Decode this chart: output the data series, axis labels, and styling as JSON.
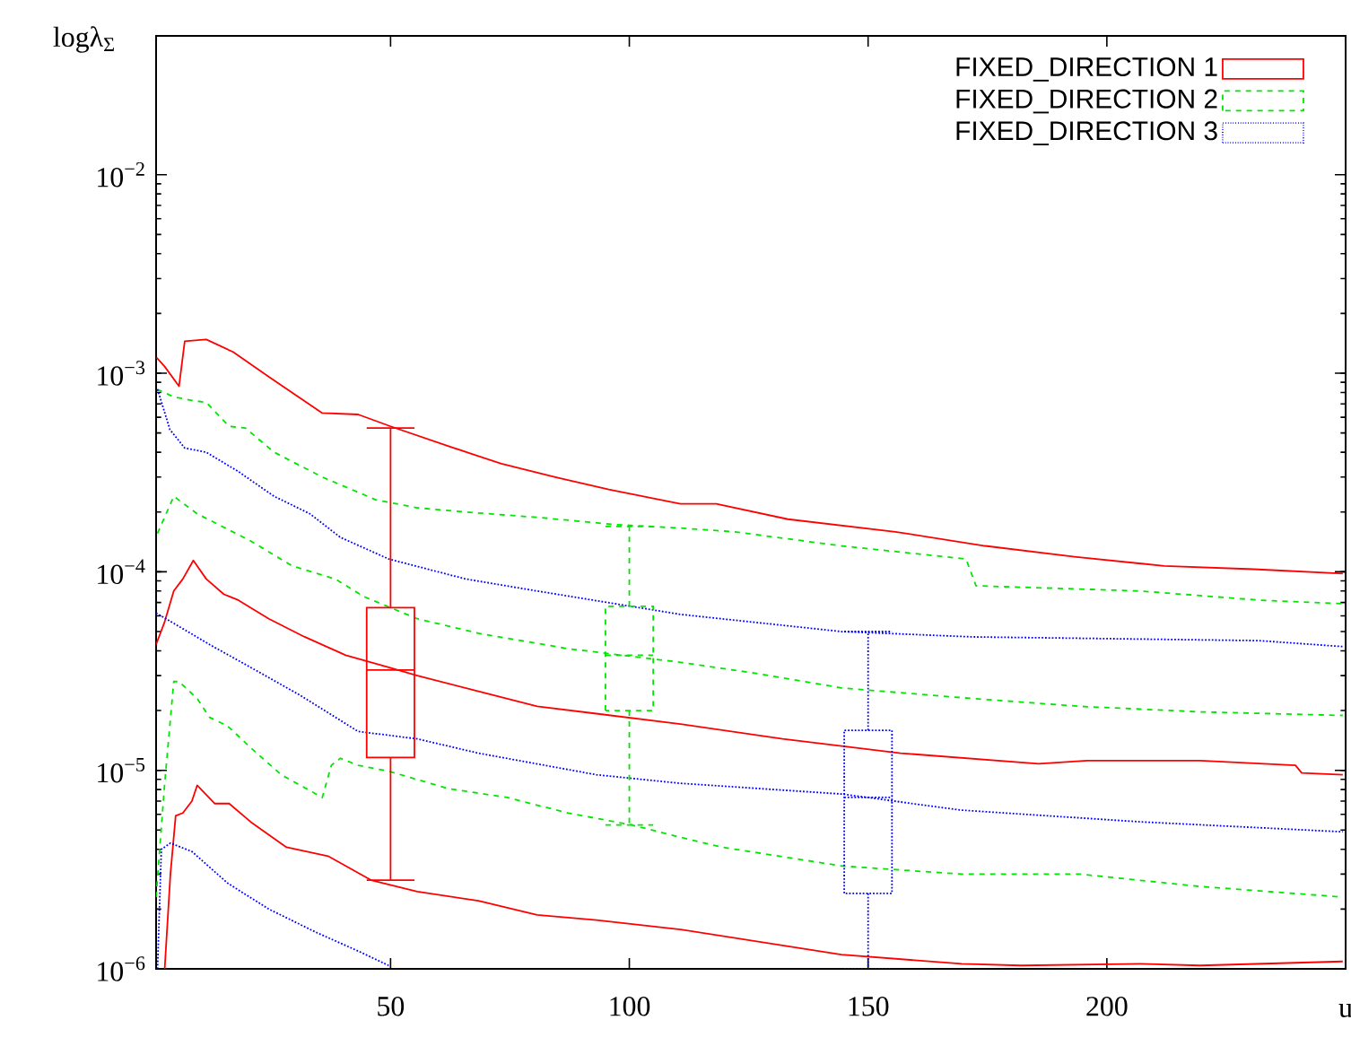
{
  "chart_data": {
    "type": "line",
    "xlabel": "u",
    "ylabel": "logλ$_{Σ}$",
    "log": "y",
    "legend": "top right",
    "xlim": [
      0.9,
      250
    ],
    "xticks": [
      50,
      100,
      150,
      200
    ],
    "ylim": [
      1e-06,
      0.05
    ],
    "yticks": [
      {
        "value": 1e-06,
        "label": "10$^{−6}$"
      },
      {
        "value": 1e-05,
        "label": "10$^{−5}$"
      },
      {
        "value": 0.0001,
        "label": "10$^{−4}$"
      },
      {
        "value": 0.001,
        "label": "10$^{−3}$"
      },
      {
        "value": 0.01,
        "label": "10$^{−2}$"
      }
    ],
    "series": [
      {
        "color": "#ff0000",
        "line_style": "solid",
        "x": [
          1,
          2.7,
          5.7,
          6.9,
          11.4,
          17,
          24.5,
          35.7,
          43.2,
          50,
          62,
          73.2,
          84.5,
          95.7,
          110.7,
          118.2,
          133.2,
          155.7,
          174.5,
          193.2,
          212,
          230.7,
          249.4
        ],
        "values": [
          0.0012,
          0.00108,
          0.00086,
          0.00145,
          0.00148,
          0.00128,
          0.00096,
          0.00063,
          0.00062,
          0.00054,
          0.00043,
          0.00035,
          0.0003,
          0.00026,
          0.00022,
          0.00022,
          0.000184,
          0.000159,
          0.000135,
          0.000119,
          0.000107,
          0.000103,
          9.8e-05
        ]
      },
      {
        "color": "#00e600",
        "line_style": "dashed",
        "x": [
          1.1,
          4.6,
          8.4,
          11.4,
          16.2,
          19.6,
          25.6,
          35.7,
          47,
          55.6,
          65.7,
          80.7,
          96.9,
          110.7,
          122,
          144.4,
          170.5,
          172.6,
          207,
          231.8,
          249.4
        ],
        "values": [
          0.00083,
          0.00076,
          0.00073,
          0.000713,
          0.00054,
          0.00053,
          0.0004,
          0.0003,
          0.00023,
          0.00021,
          0.0002,
          0.000188,
          0.000173,
          0.000166,
          0.000159,
          0.000135,
          0.000116,
          8.5e-05,
          8e-05,
          7.2e-05,
          6.9e-05
        ]
      },
      {
        "color": "#0000ff",
        "line_style": "dotted",
        "x": [
          1.2,
          3.8,
          6.9,
          11.4,
          18.1,
          25.6,
          33.1,
          39.5,
          49.6,
          65.7,
          80.7,
          110.7,
          144.4,
          171.8,
          231.8,
          249.4
        ],
        "values": [
          0.00083,
          0.00052,
          0.00042,
          0.0004,
          0.00032,
          0.00024,
          0.000196,
          0.000149,
          0.000116,
          9.2e-05,
          8e-05,
          6.1e-05,
          5e-05,
          4.7e-05,
          4.5e-05,
          4.2e-05
        ]
      },
      {
        "color": "#00e600",
        "line_style": "dashed",
        "x": [
          1.2,
          4.6,
          9.5,
          20.7,
          29.4,
          38.4,
          44.4,
          55.6,
          68.4,
          87.1,
          110.7,
          125.7,
          144.4,
          171.8,
          194.4,
          219.5,
          249.4
        ],
        "values": [
          0.000156,
          0.00024,
          0.000196,
          0.000143,
          0.000107,
          9.2e-05,
          7.5e-05,
          5.8e-05,
          4.9e-05,
          4.1e-05,
          3.5e-05,
          3.1e-05,
          2.6e-05,
          2.3e-05,
          2.1e-05,
          1.97e-05,
          1.89e-05
        ]
      },
      {
        "color": "#ff0000",
        "line_style": "solid",
        "x": [
          0.9,
          2.7,
          4.6,
          6.5,
          8.7,
          11.4,
          15.1,
          18.1,
          24.5,
          32,
          40.6,
          49.6,
          55.6,
          68.4,
          80.7,
          93.1,
          110.7,
          132.1,
          156.8,
          185.7,
          195.9,
          219.5,
          239.5,
          240.8,
          249.4
        ],
        "values": [
          4.3e-05,
          5.6e-05,
          8e-05,
          9.2e-05,
          0.000114,
          9.2e-05,
          7.7e-05,
          7.2e-05,
          5.8e-05,
          4.7e-05,
          3.8e-05,
          3.3e-05,
          3e-05,
          2.5e-05,
          2.1e-05,
          1.93e-05,
          1.71e-05,
          1.44e-05,
          1.22e-05,
          1.08e-05,
          1.12e-05,
          1.12e-05,
          1.06e-05,
          9.7e-06,
          9.5e-06
        ]
      },
      {
        "color": "#0000ff",
        "line_style": "dotted",
        "x": [
          0.9,
          4.6,
          12.1,
          20.7,
          30.9,
          43.2,
          55.6,
          68.4,
          93.1,
          110.7,
          144.4,
          169.6,
          207.1,
          249.4
        ],
        "values": [
          6.2e-05,
          5.5e-05,
          4.3e-05,
          3.3e-05,
          2.4e-05,
          1.57e-05,
          1.44e-05,
          1.22e-05,
          9.5e-06,
          8.6e-06,
          7.6e-06,
          6.3e-06,
          5.5e-06,
          4.9e-06
        ]
      },
      {
        "color": "#00e600",
        "line_style": "dashed",
        "x": [
          0.9,
          2.7,
          4.6,
          5.7,
          9.5,
          12.1,
          15.9,
          20.7,
          27.1,
          35.7,
          37.6,
          39.5,
          43.2,
          49.6,
          62,
          74.4,
          87.1,
          100.6,
          110.7,
          119.4,
          144.4,
          169.6,
          194.4,
          219.5,
          249.4
        ],
        "values": [
          2.3e-06,
          8.6e-06,
          2.8e-05,
          2.8e-05,
          2.3e-05,
          1.85e-05,
          1.67e-05,
          1.3e-05,
          9.5e-06,
          7.3e-06,
          1.06e-05,
          1.15e-05,
          1.06e-05,
          9.9e-06,
          8.1e-06,
          7.3e-06,
          6.1e-06,
          5.3e-06,
          4.6e-06,
          4.1e-06,
          3.3e-06,
          3e-06,
          3e-06,
          2.6e-06,
          2.3e-06
        ]
      },
      {
        "color": "#ff0000",
        "line_style": "solid",
        "x": [
          2.7,
          3.9,
          5,
          6.5,
          8.4,
          9.5,
          13.2,
          16.2,
          20.7,
          28.2,
          36.9,
          45.9,
          55.6,
          68.4,
          80.7,
          93.1,
          110.7,
          144.4,
          169.6,
          182,
          207.1,
          219.5,
          249.4
        ],
        "values": [
          1e-06,
          3e-06,
          5.9e-06,
          6.1e-06,
          7e-06,
          8.4e-06,
          6.8e-06,
          6.8e-06,
          5.5e-06,
          4.1e-06,
          3.7e-06,
          2.8e-06,
          2.45e-06,
          2.2e-06,
          1.87e-06,
          1.76e-06,
          1.58e-06,
          1.18e-06,
          1.06e-06,
          1.04e-06,
          1.06e-06,
          1.04e-06,
          1.09e-06
        ]
      },
      {
        "color": "#0000ff",
        "line_style": "dotted",
        "x": [
          1.2,
          2,
          3.9,
          8.4,
          15.9,
          24.5,
          34.6,
          43.2,
          49.6
        ],
        "values": [
          1e-06,
          4e-06,
          4.3e-06,
          3.9e-06,
          2.7e-06,
          2e-06,
          1.52e-06,
          1.23e-06,
          1.04e-06
        ]
      },
      {
        "type": "box",
        "name": "FIXED_DIRECTION 1",
        "color": "#ff0000",
        "line_style": "solid",
        "x": [
          50
        ],
        "boxes": [
          {
            "low": 2.8e-06,
            "q1": 1.16e-05,
            "median": 3.2e-05,
            "q3": 6.6e-05,
            "high": 0.00053
          }
        ]
      },
      {
        "type": "box",
        "name": "FIXED_DIRECTION 2",
        "color": "#00e600",
        "line_style": "dashed",
        "x": [
          100
        ],
        "boxes": [
          {
            "low": 5.3e-06,
            "q1": 2e-05,
            "median": 3.8e-05,
            "q3": 6.7e-05,
            "high": 0.000169
          }
        ]
      },
      {
        "type": "box",
        "name": "FIXED_DIRECTION 3",
        "color": "#0000ff",
        "line_style": "dotted",
        "x": [
          150
        ],
        "boxes": [
          {
            "low": 1e-06,
            "q1": 2.4e-06,
            "median": 7.3e-06,
            "q3": 1.59e-05,
            "high": 5e-05
          }
        ]
      }
    ]
  }
}
